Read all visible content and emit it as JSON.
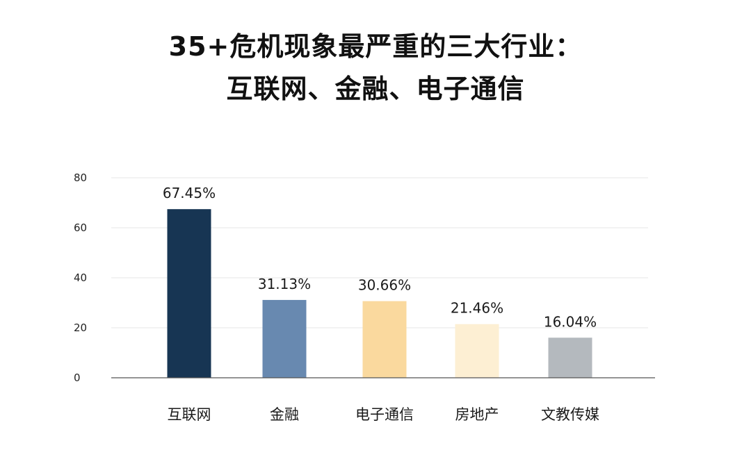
{
  "chart_data": {
    "type": "bar",
    "title_line1": "35+危机现象最严重的三大行业：",
    "title_line2": "互联网、金融、电子通信",
    "categories": [
      "互联网",
      "金融",
      "电子通信",
      "房地产",
      "文教传媒"
    ],
    "values": [
      67.45,
      31.13,
      30.66,
      21.46,
      16.04
    ],
    "data_labels": [
      "67.45%",
      "31.13%",
      "30.66%",
      "21.46%",
      "16.04%"
    ],
    "bar_colors": [
      "#173553",
      "#6889b0",
      "#fad99e",
      "#fdefd3",
      "#b4b9be"
    ],
    "ylim": [
      0,
      80
    ],
    "yticks": [
      0,
      20,
      40,
      60,
      80
    ],
    "grid": true,
    "gridline_color": "#e6e6e6",
    "axis_color": "#555555",
    "xlabel": "",
    "ylabel": ""
  }
}
